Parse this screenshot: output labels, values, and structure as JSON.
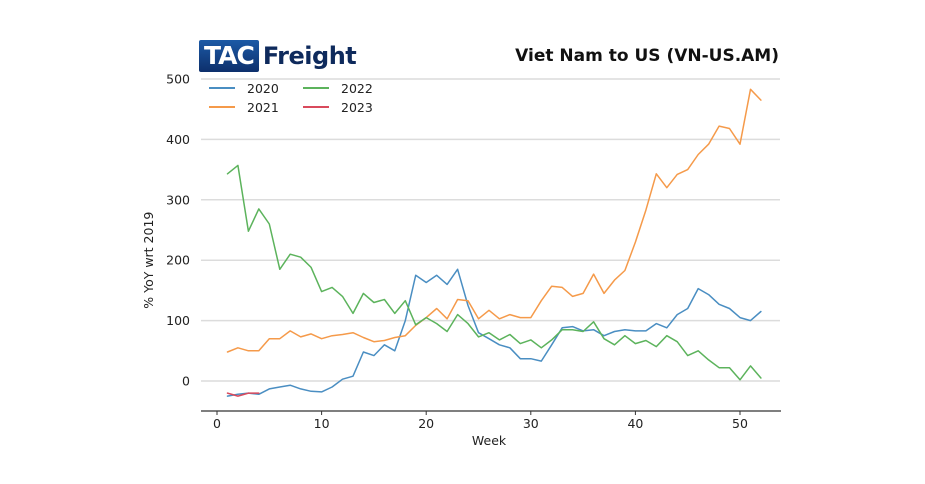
{
  "brand": {
    "logo_part1": "TAC",
    "logo_part2": "Freight"
  },
  "chart_data": {
    "type": "line",
    "title": "Viet Nam to US (VN-US.AM)",
    "xlabel": "Week",
    "ylabel": "% YoY wrt 2019",
    "xlim": [
      -1.5,
      54.5
    ],
    "ylim": [
      -50,
      505
    ],
    "xticks": [
      0,
      10,
      20,
      30,
      40,
      50
    ],
    "yticks": [
      0,
      100,
      200,
      300,
      400,
      500
    ],
    "grid": "horizontal",
    "legend_position": "top-left",
    "series": [
      {
        "name": "2020",
        "color": "#4a8ec2",
        "x": [
          1,
          2,
          3,
          4,
          5,
          6,
          7,
          8,
          9,
          10,
          11,
          12,
          13,
          14,
          15,
          16,
          17,
          18,
          19,
          20,
          21,
          22,
          23,
          24,
          25,
          26,
          27,
          28,
          29,
          30,
          31,
          32,
          33,
          34,
          35,
          36,
          37,
          38,
          39,
          40,
          41,
          42,
          43,
          44,
          45,
          46,
          47,
          48,
          49,
          50,
          51,
          52
        ],
        "values": [
          -25,
          -22,
          -20,
          -22,
          -13,
          -10,
          -7,
          -13,
          -17,
          -18,
          -10,
          3,
          8,
          48,
          42,
          60,
          50,
          100,
          175,
          163,
          175,
          160,
          185,
          125,
          80,
          70,
          60,
          55,
          37,
          37,
          33,
          60,
          88,
          90,
          83,
          85,
          75,
          82,
          85,
          83,
          83,
          95,
          88,
          110,
          120,
          153,
          143,
          127,
          120,
          105,
          100,
          115
        ]
      },
      {
        "name": "2021",
        "color": "#f59a4a",
        "x": [
          1,
          2,
          3,
          4,
          5,
          6,
          7,
          8,
          9,
          10,
          11,
          12,
          13,
          14,
          15,
          16,
          17,
          18,
          19,
          20,
          21,
          22,
          23,
          24,
          25,
          26,
          27,
          28,
          29,
          30,
          31,
          32,
          33,
          34,
          35,
          36,
          37,
          38,
          39,
          40,
          41,
          42,
          43,
          44,
          45,
          46,
          47,
          48,
          49,
          50,
          51,
          52
        ],
        "values": [
          48,
          55,
          50,
          50,
          70,
          70,
          83,
          73,
          78,
          70,
          75,
          77,
          80,
          72,
          65,
          67,
          72,
          75,
          92,
          105,
          120,
          103,
          135,
          133,
          103,
          117,
          103,
          110,
          105,
          105,
          133,
          157,
          155,
          140,
          145,
          177,
          145,
          167,
          183,
          230,
          283,
          343,
          320,
          342,
          350,
          375,
          392,
          422,
          418,
          392,
          483,
          465
        ]
      },
      {
        "name": "2022",
        "color": "#5cb35c",
        "x": [
          1,
          2,
          3,
          4,
          5,
          6,
          7,
          8,
          9,
          10,
          11,
          12,
          13,
          14,
          15,
          16,
          17,
          18,
          19,
          20,
          21,
          22,
          23,
          24,
          25,
          26,
          27,
          28,
          29,
          30,
          31,
          32,
          33,
          34,
          35,
          36,
          37,
          38,
          39,
          40,
          41,
          42,
          43,
          44,
          45,
          46,
          47,
          48,
          49,
          50,
          51,
          52
        ],
        "values": [
          343,
          357,
          248,
          285,
          260,
          185,
          210,
          205,
          188,
          148,
          155,
          140,
          112,
          145,
          130,
          135,
          112,
          133,
          93,
          105,
          95,
          82,
          110,
          95,
          73,
          80,
          68,
          77,
          62,
          68,
          55,
          68,
          85,
          85,
          82,
          98,
          70,
          60,
          75,
          62,
          67,
          57,
          75,
          65,
          42,
          50,
          35,
          22,
          22,
          2,
          25,
          5
        ]
      },
      {
        "name": "2023",
        "color": "#d94a5c",
        "x": [
          1,
          2,
          3,
          4
        ],
        "values": [
          -20,
          -25,
          -20,
          -20
        ]
      }
    ]
  }
}
